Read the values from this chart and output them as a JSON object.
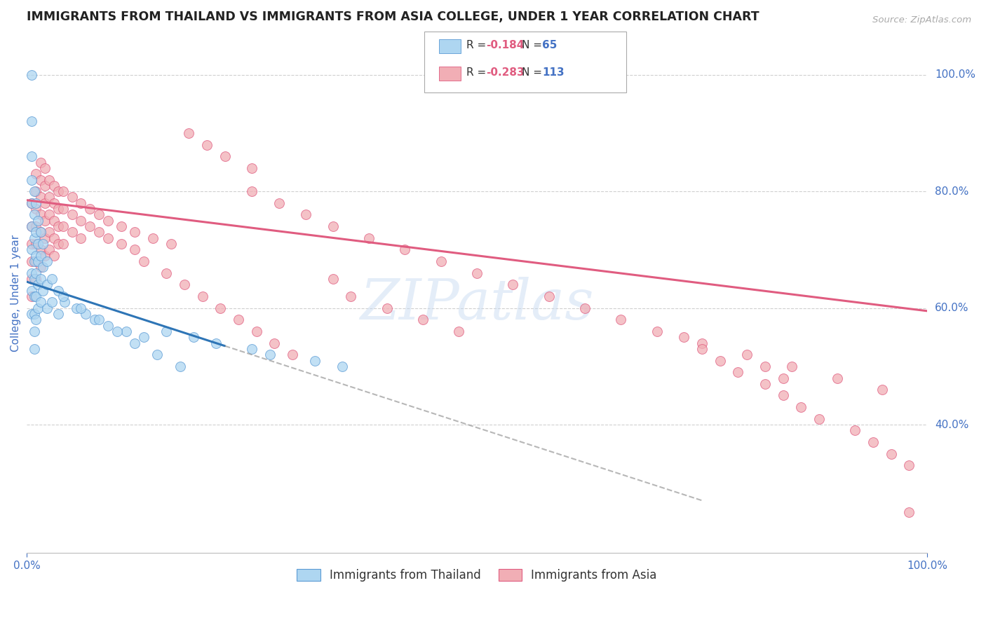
{
  "title": "IMMIGRANTS FROM THAILAND VS IMMIGRANTS FROM ASIA COLLEGE, UNDER 1 YEAR CORRELATION CHART",
  "source": "Source: ZipAtlas.com",
  "ylabel": "College, Under 1 year",
  "y_tick_labels": [
    "40.0%",
    "60.0%",
    "80.0%",
    "100.0%"
  ],
  "y_tick_positions": [
    0.4,
    0.6,
    0.8,
    1.0
  ],
  "xlim": [
    0.0,
    1.0
  ],
  "ylim": [
    0.18,
    1.07
  ],
  "legend_r_thailand": "-0.184",
  "legend_n_thailand": "65",
  "legend_r_asia": "-0.283",
  "legend_n_asia": "113",
  "scatter_thailand": {
    "color": "#aed6f1",
    "edge_color": "#5b9bd5",
    "alpha": 0.75,
    "size": 100,
    "x": [
      0.005,
      0.005,
      0.005,
      0.005,
      0.005,
      0.005,
      0.005,
      0.005,
      0.005,
      0.005,
      0.008,
      0.008,
      0.008,
      0.008,
      0.008,
      0.008,
      0.008,
      0.008,
      0.008,
      0.01,
      0.01,
      0.01,
      0.01,
      0.01,
      0.01,
      0.012,
      0.012,
      0.012,
      0.012,
      0.012,
      0.015,
      0.015,
      0.015,
      0.015,
      0.018,
      0.018,
      0.018,
      0.022,
      0.022,
      0.022,
      0.028,
      0.028,
      0.035,
      0.035,
      0.042,
      0.055,
      0.065,
      0.075,
      0.09,
      0.11,
      0.13,
      0.155,
      0.185,
      0.21,
      0.25,
      0.27,
      0.32,
      0.35,
      0.04,
      0.06,
      0.08,
      0.1,
      0.12,
      0.145,
      0.17
    ],
    "y": [
      1.0,
      0.92,
      0.86,
      0.82,
      0.78,
      0.74,
      0.7,
      0.66,
      0.63,
      0.59,
      0.8,
      0.76,
      0.72,
      0.68,
      0.65,
      0.62,
      0.59,
      0.56,
      0.53,
      0.78,
      0.73,
      0.69,
      0.66,
      0.62,
      0.58,
      0.75,
      0.71,
      0.68,
      0.64,
      0.6,
      0.73,
      0.69,
      0.65,
      0.61,
      0.71,
      0.67,
      0.63,
      0.68,
      0.64,
      0.6,
      0.65,
      0.61,
      0.63,
      0.59,
      0.61,
      0.6,
      0.59,
      0.58,
      0.57,
      0.56,
      0.55,
      0.56,
      0.55,
      0.54,
      0.53,
      0.52,
      0.51,
      0.5,
      0.62,
      0.6,
      0.58,
      0.56,
      0.54,
      0.52,
      0.5
    ]
  },
  "scatter_asia": {
    "color": "#f1aeb5",
    "edge_color": "#e05c80",
    "alpha": 0.75,
    "size": 100,
    "x": [
      0.005,
      0.005,
      0.005,
      0.005,
      0.005,
      0.005,
      0.01,
      0.01,
      0.01,
      0.01,
      0.01,
      0.01,
      0.01,
      0.015,
      0.015,
      0.015,
      0.015,
      0.015,
      0.015,
      0.015,
      0.02,
      0.02,
      0.02,
      0.02,
      0.02,
      0.02,
      0.025,
      0.025,
      0.025,
      0.025,
      0.025,
      0.03,
      0.03,
      0.03,
      0.03,
      0.03,
      0.035,
      0.035,
      0.035,
      0.035,
      0.04,
      0.04,
      0.04,
      0.04,
      0.05,
      0.05,
      0.05,
      0.06,
      0.06,
      0.06,
      0.07,
      0.07,
      0.08,
      0.08,
      0.09,
      0.09,
      0.105,
      0.105,
      0.12,
      0.12,
      0.14,
      0.16,
      0.18,
      0.2,
      0.22,
      0.25,
      0.25,
      0.28,
      0.31,
      0.34,
      0.38,
      0.42,
      0.46,
      0.5,
      0.54,
      0.58,
      0.62,
      0.66,
      0.7,
      0.75,
      0.8,
      0.85,
      0.9,
      0.95,
      0.98,
      0.34,
      0.36,
      0.4,
      0.44,
      0.48,
      0.13,
      0.155,
      0.175,
      0.195,
      0.215,
      0.235,
      0.255,
      0.275,
      0.295,
      0.75,
      0.77,
      0.79,
      0.82,
      0.84,
      0.86,
      0.88,
      0.92,
      0.94,
      0.96,
      0.98,
      0.82,
      0.84,
      0.73
    ],
    "y": [
      0.78,
      0.74,
      0.71,
      0.68,
      0.65,
      0.62,
      0.83,
      0.8,
      0.77,
      0.74,
      0.71,
      0.68,
      0.65,
      0.85,
      0.82,
      0.79,
      0.76,
      0.73,
      0.7,
      0.67,
      0.84,
      0.81,
      0.78,
      0.75,
      0.72,
      0.69,
      0.82,
      0.79,
      0.76,
      0.73,
      0.7,
      0.81,
      0.78,
      0.75,
      0.72,
      0.69,
      0.8,
      0.77,
      0.74,
      0.71,
      0.8,
      0.77,
      0.74,
      0.71,
      0.79,
      0.76,
      0.73,
      0.78,
      0.75,
      0.72,
      0.77,
      0.74,
      0.76,
      0.73,
      0.75,
      0.72,
      0.74,
      0.71,
      0.73,
      0.7,
      0.72,
      0.71,
      0.9,
      0.88,
      0.86,
      0.84,
      0.8,
      0.78,
      0.76,
      0.74,
      0.72,
      0.7,
      0.68,
      0.66,
      0.64,
      0.62,
      0.6,
      0.58,
      0.56,
      0.54,
      0.52,
      0.5,
      0.48,
      0.46,
      0.25,
      0.65,
      0.62,
      0.6,
      0.58,
      0.56,
      0.68,
      0.66,
      0.64,
      0.62,
      0.6,
      0.58,
      0.56,
      0.54,
      0.52,
      0.53,
      0.51,
      0.49,
      0.47,
      0.45,
      0.43,
      0.41,
      0.39,
      0.37,
      0.35,
      0.33,
      0.5,
      0.48,
      0.55
    ]
  },
  "trendline_thailand_solid": {
    "color": "#2e75b6",
    "linewidth": 2.2,
    "x": [
      0.0,
      0.22
    ],
    "y": [
      0.645,
      0.535
    ]
  },
  "trendline_thailand_dashed": {
    "color": "#999999",
    "linewidth": 1.5,
    "x": [
      0.22,
      0.75
    ],
    "y": [
      0.535,
      0.27
    ],
    "linestyle": "--"
  },
  "trendline_asia": {
    "color": "#e05c80",
    "linewidth": 2.2,
    "x": [
      0.0,
      1.0
    ],
    "y": [
      0.785,
      0.595
    ]
  },
  "watermark_text": "ZIPatlas",
  "watermark_color": "#c5d9f1",
  "watermark_alpha": 0.45,
  "watermark_fontsize": 58,
  "background_color": "#ffffff",
  "title_fontsize": 12.5,
  "title_color": "#222222",
  "axis_label_color": "#4472c4",
  "tick_label_color": "#4472c4",
  "grid_color": "#d0d0d0",
  "grid_style": "--",
  "legend_box_color_thailand": "#aed6f1",
  "legend_box_color_asia": "#f1aeb5",
  "legend_box_edge_thailand": "#5b9bd5",
  "legend_box_edge_asia": "#e05c80",
  "bottom_legend": [
    "Immigrants from Thailand",
    "Immigrants from Asia"
  ]
}
